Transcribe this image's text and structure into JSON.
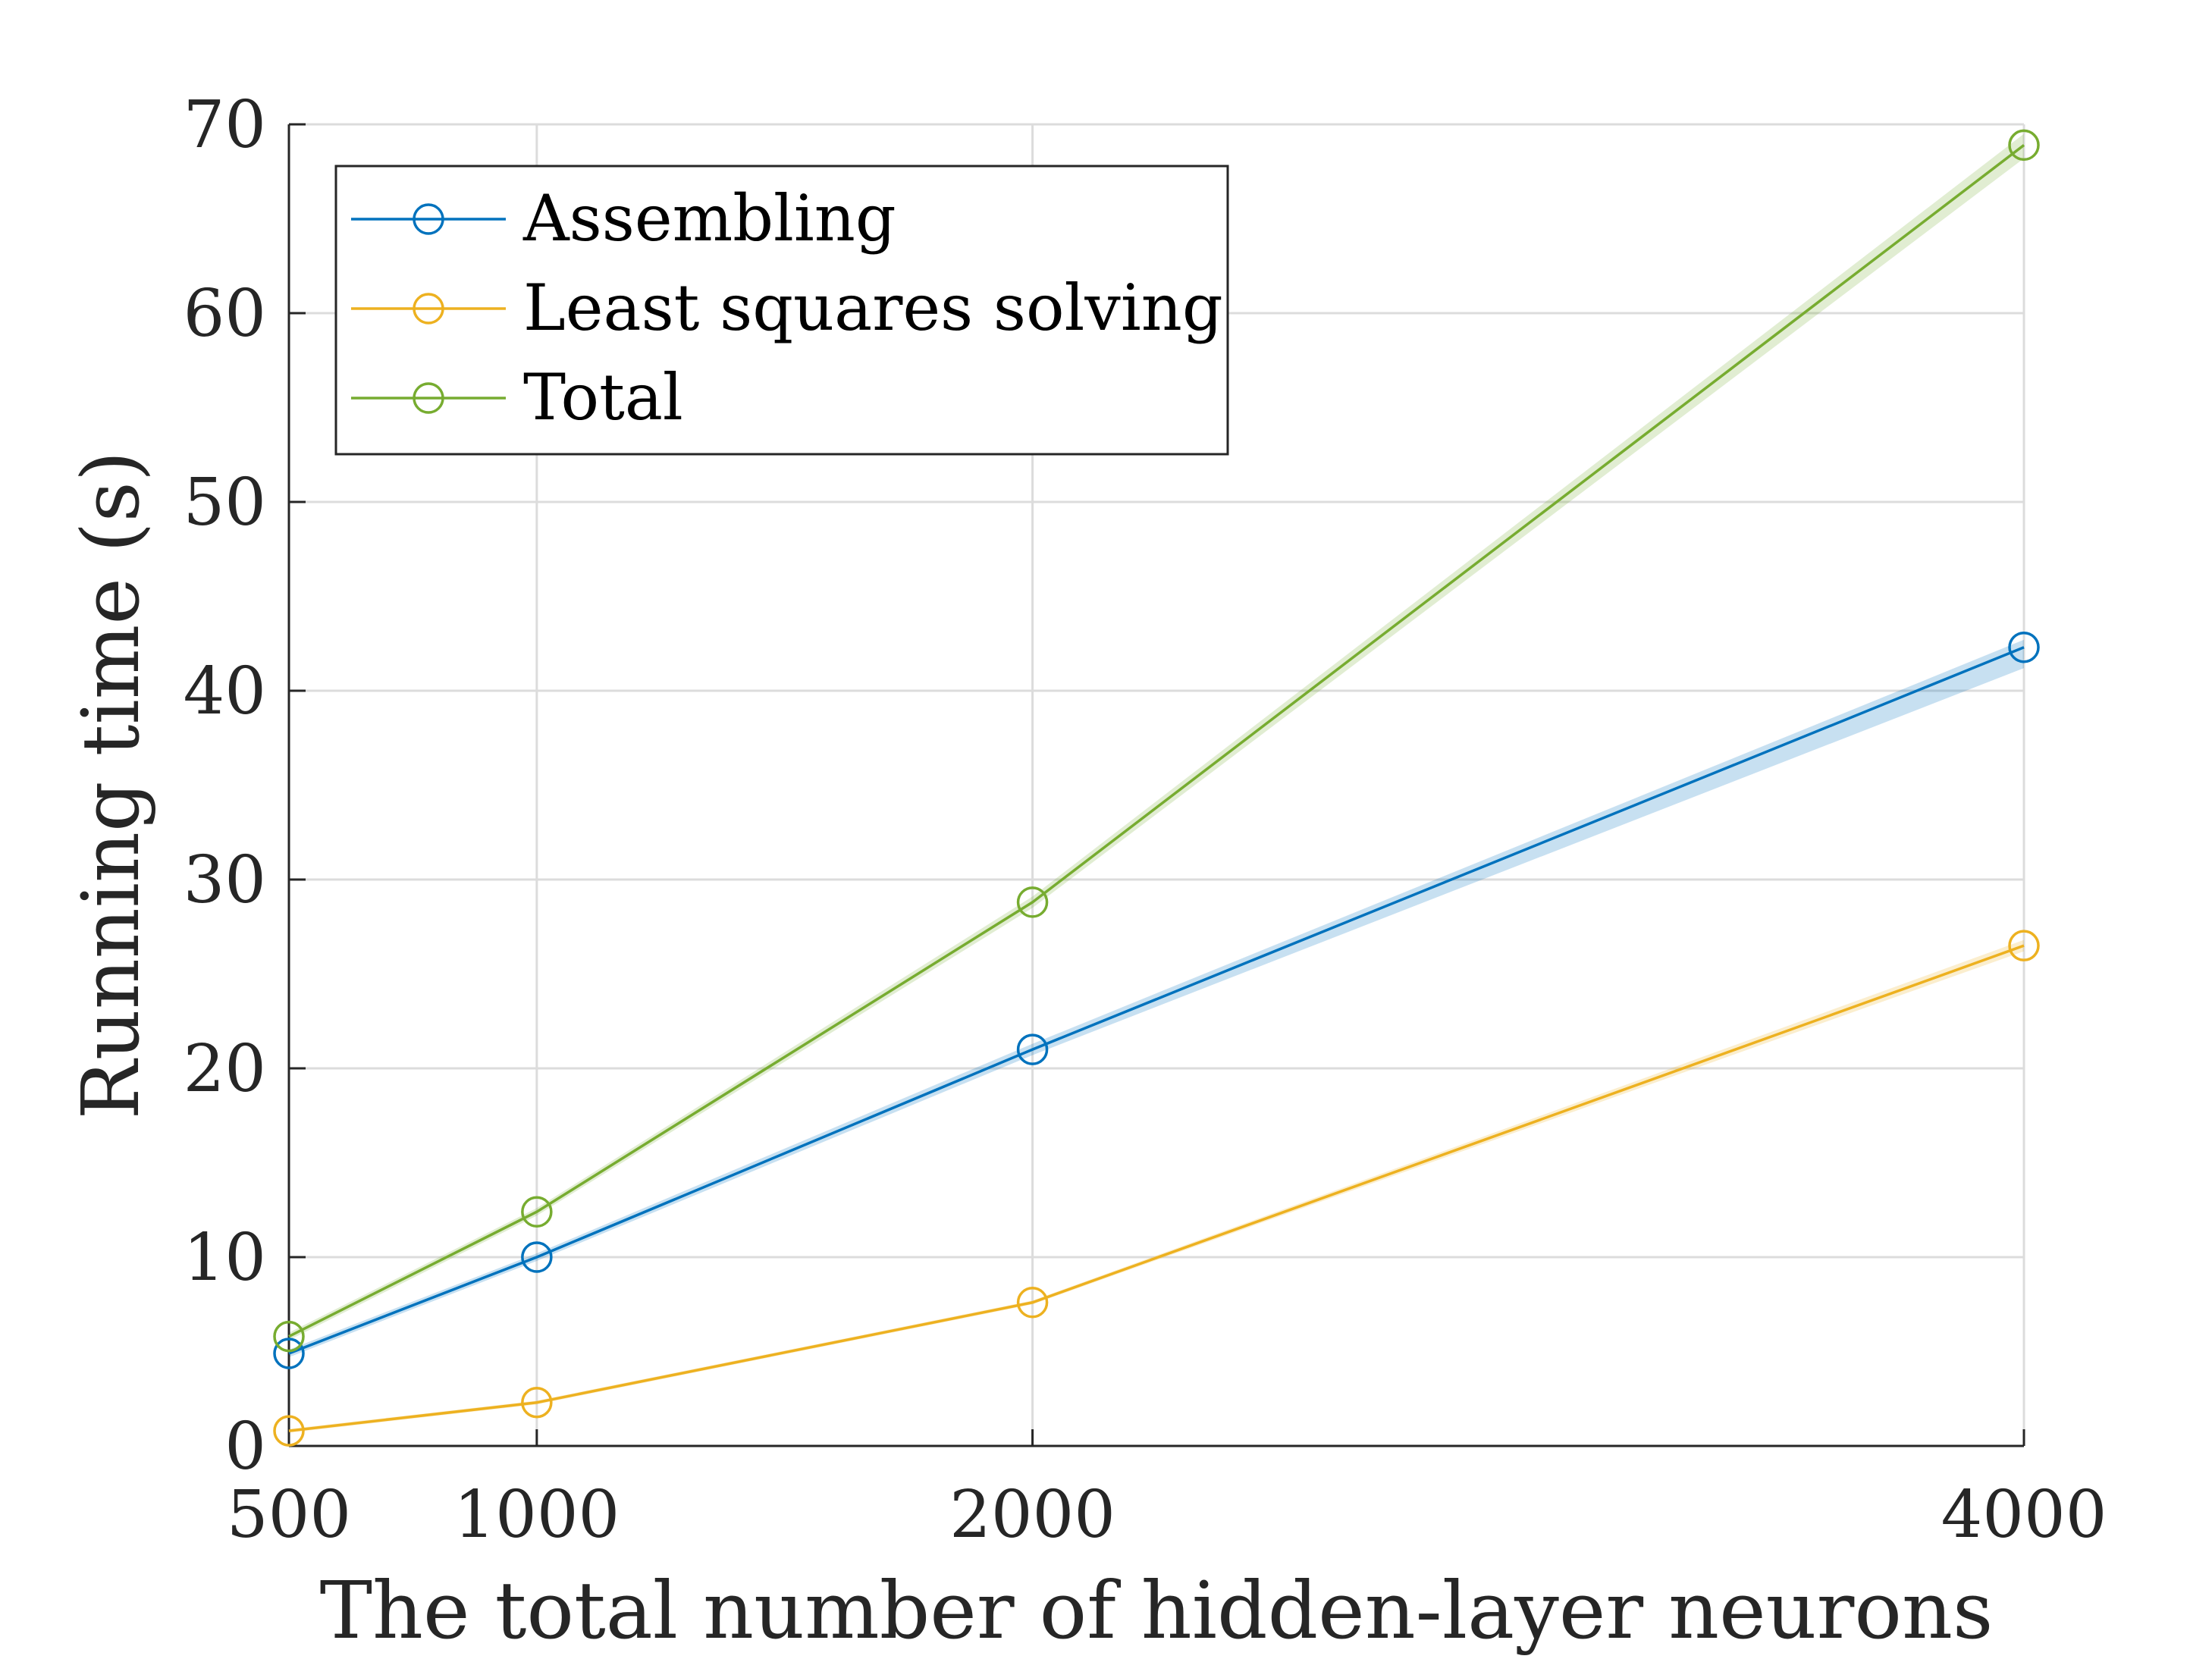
{
  "chart_data": {
    "type": "line",
    "xlabel": "The total number of hidden-layer neurons",
    "ylabel": "Running time (s)",
    "x": [
      500,
      1000,
      2000,
      4000
    ],
    "x_ticks": [
      500,
      1000,
      2000,
      4000
    ],
    "y_ticks": [
      0,
      10,
      20,
      30,
      40,
      50,
      60,
      70
    ],
    "xlim": [
      500,
      4000
    ],
    "ylim": [
      0,
      70
    ],
    "grid": true,
    "legend_position": "top-left",
    "series": [
      {
        "name": "Assembling",
        "color": "#0072BD",
        "marker": "circle",
        "values": [
          4.9,
          10.0,
          21.0,
          42.3
        ],
        "band_lower": [
          4.7,
          9.8,
          20.7,
          41.2
        ],
        "band_upper": [
          5.1,
          10.2,
          21.3,
          42.7
        ]
      },
      {
        "name": "Least squares solving",
        "color": "#EDB120",
        "marker": "circle",
        "values": [
          0.8,
          2.3,
          7.6,
          26.5
        ],
        "band_lower": [
          0.7,
          2.2,
          7.5,
          26.2
        ],
        "band_upper": [
          0.9,
          2.4,
          7.7,
          26.8
        ]
      },
      {
        "name": "Total",
        "color": "#77AC30",
        "marker": "circle",
        "values": [
          5.8,
          12.4,
          28.8,
          68.9
        ],
        "band_lower": [
          5.6,
          12.2,
          28.5,
          68.2
        ],
        "band_upper": [
          6.0,
          12.6,
          29.1,
          69.5
        ]
      }
    ]
  }
}
